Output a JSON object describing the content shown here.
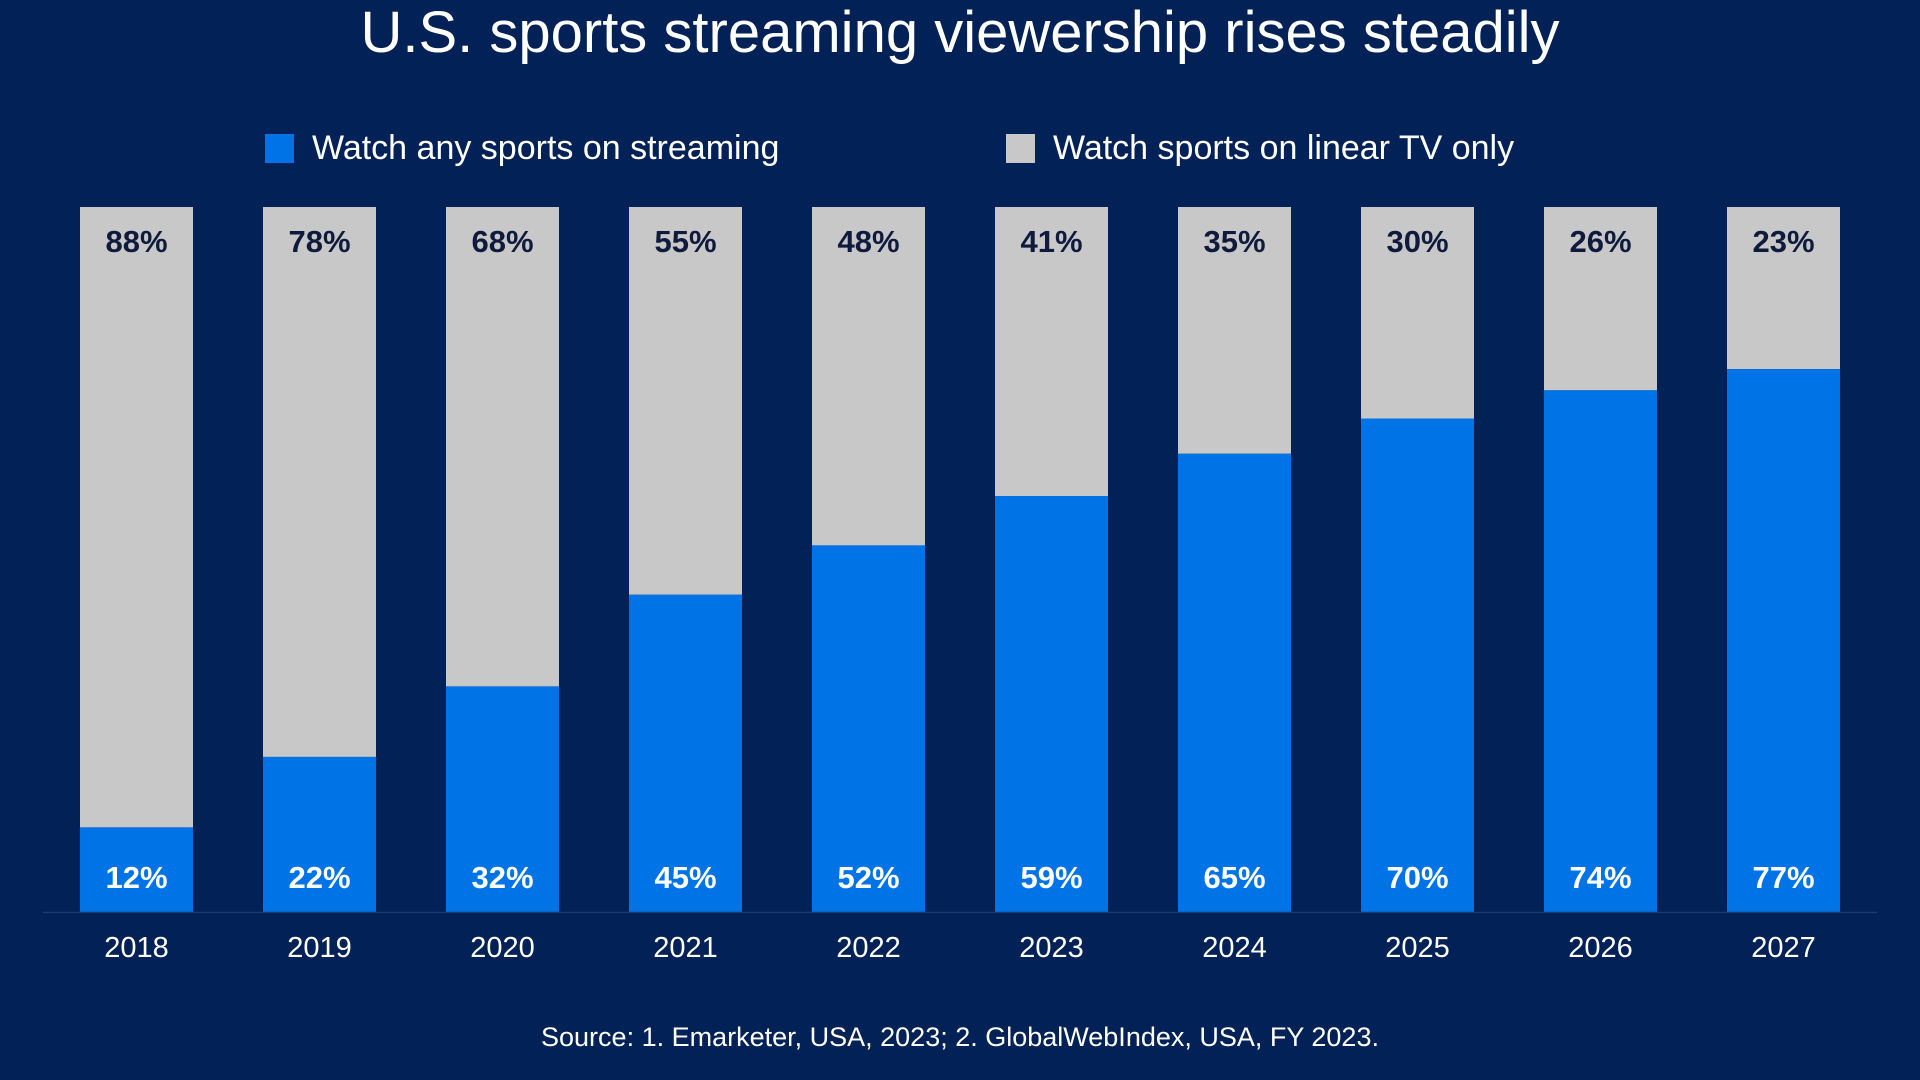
{
  "chart_data": {
    "type": "bar",
    "stacked": true,
    "title": "U.S. sports streaming viewership rises steadily",
    "categories": [
      "2018",
      "2019",
      "2020",
      "2021",
      "2022",
      "2023",
      "2024",
      "2025",
      "2026",
      "2027"
    ],
    "series": [
      {
        "name": "Watch any sports on streaming",
        "color": "#0073e6",
        "values": [
          12,
          22,
          32,
          45,
          52,
          59,
          65,
          70,
          74,
          77
        ]
      },
      {
        "name": "Watch sports on linear TV only",
        "color": "#c8c8c8",
        "values": [
          88,
          78,
          68,
          55,
          48,
          41,
          35,
          30,
          26,
          23
        ]
      }
    ],
    "ylim": [
      0,
      100
    ],
    "value_suffix": "%",
    "grid": false,
    "legend_placement": "top",
    "source": "Source: 1. Emarketer, USA, 2023; 2. GlobalWebIndex, USA, FY 2023."
  },
  "colors": {
    "background": "#022257",
    "label_dark": "#0f1a3c"
  }
}
